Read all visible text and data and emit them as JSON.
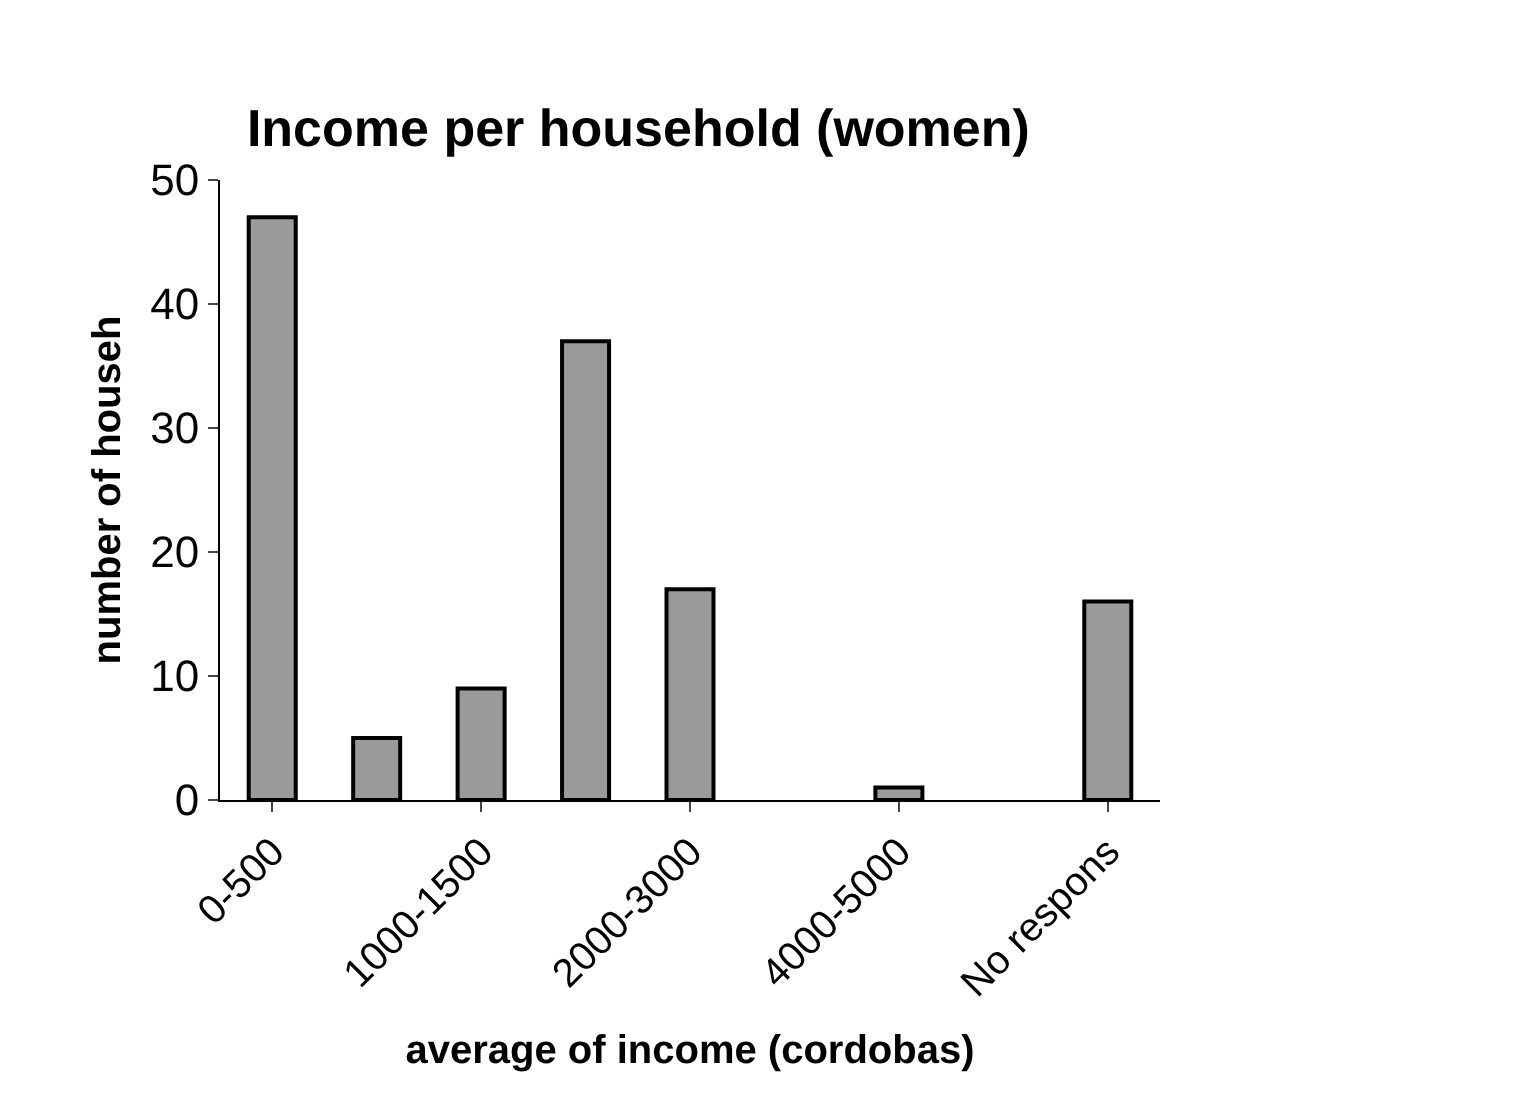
{
  "chart_data": {
    "type": "bar",
    "title": "Income per household (women)",
    "xlabel": "average of income (cordobas)",
    "ylabel": "number of househ",
    "categories": [
      "0-500",
      null,
      "1000-1500",
      null,
      "2000-3000",
      null,
      "4000-5000",
      null,
      "No respons"
    ],
    "values": [
      47,
      5,
      9,
      37,
      17,
      0,
      1,
      0,
      16
    ],
    "color": "#9a9a9a",
    "ylim": [
      0,
      50
    ],
    "yticks": [
      0,
      10,
      20,
      30,
      40,
      50
    ],
    "grid": false
  }
}
